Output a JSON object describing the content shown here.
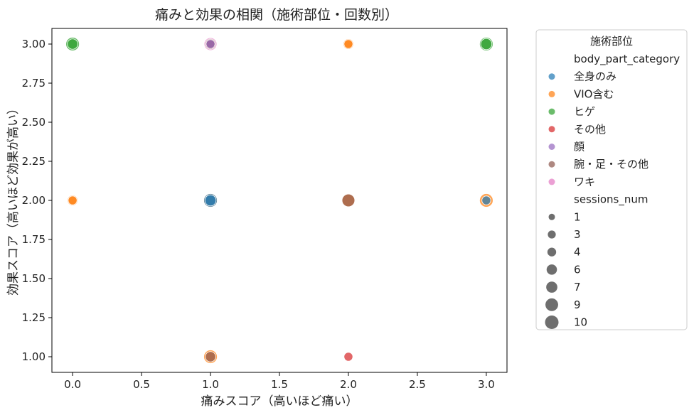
{
  "chart_data": {
    "type": "scatter",
    "title": "痛みと効果の相関（施術部位・回数別）",
    "xlabel": "痛みスコア（高いほど痛い）",
    "ylabel": "効果スコア（高いほど効果が高い）",
    "xlim": [
      -0.15,
      3.15
    ],
    "ylim": [
      0.9,
      3.1
    ],
    "xticks": [
      "0.0",
      "0.5",
      "1.0",
      "1.5",
      "2.0",
      "2.5",
      "3.0"
    ],
    "yticks": [
      "1.00",
      "1.25",
      "1.50",
      "1.75",
      "2.00",
      "2.25",
      "2.50",
      "2.75",
      "3.00"
    ],
    "grid": false,
    "legend": {
      "title": "施術部位",
      "placement": "outside-right",
      "hue_title": "body_part_category",
      "size_title": "sessions_num",
      "categories": [
        {
          "name": "全身のみ",
          "color": "#1f77b4"
        },
        {
          "name": "VIO含む",
          "color": "#ff7f0e"
        },
        {
          "name": "ヒゲ",
          "color": "#2ca02c"
        },
        {
          "name": "その他",
          "color": "#d62728"
        },
        {
          "name": "顔",
          "color": "#9467bd"
        },
        {
          "name": "腕・足・その他",
          "color": "#8c564b"
        },
        {
          "name": "ワキ",
          "color": "#e377c2"
        }
      ],
      "sizes": [
        "1",
        "3",
        "4",
        "6",
        "7",
        "9",
        "10"
      ]
    },
    "points": [
      {
        "x": 0,
        "y": 3,
        "category": "ヒゲ",
        "sessions": 10
      },
      {
        "x": 0,
        "y": 3,
        "category": "ヒゲ",
        "sessions": 6
      },
      {
        "x": 0,
        "y": 2,
        "category": "VIO含む",
        "sessions": 6
      },
      {
        "x": 0,
        "y": 2,
        "category": "VIO含む",
        "sessions": 4
      },
      {
        "x": 1,
        "y": 3,
        "category": "腕・足・その他",
        "sessions": 6
      },
      {
        "x": 1,
        "y": 3,
        "category": "ワキ",
        "sessions": 9
      },
      {
        "x": 1,
        "y": 3,
        "category": "顔",
        "sessions": 4
      },
      {
        "x": 1,
        "y": 2,
        "category": "VIO含む",
        "sessions": 10
      },
      {
        "x": 1,
        "y": 2,
        "category": "全身のみ",
        "sessions": 10
      },
      {
        "x": 1,
        "y": 2,
        "category": "全身のみ",
        "sessions": 7
      },
      {
        "x": 1,
        "y": 1,
        "category": "VIO含む",
        "sessions": 10
      },
      {
        "x": 1,
        "y": 1,
        "category": "腕・足・その他",
        "sessions": 6
      },
      {
        "x": 2,
        "y": 3,
        "category": "VIO含む",
        "sessions": 6
      },
      {
        "x": 2,
        "y": 3,
        "category": "VIO含む",
        "sessions": 4
      },
      {
        "x": 2,
        "y": 2,
        "category": "VIO含む",
        "sessions": 10
      },
      {
        "x": 2,
        "y": 2,
        "category": "腕・足・その他",
        "sessions": 9
      },
      {
        "x": 2,
        "y": 1,
        "category": "その他",
        "sessions": 4
      },
      {
        "x": 3,
        "y": 3,
        "category": "ヒゲ",
        "sessions": 10
      },
      {
        "x": 3,
        "y": 3,
        "category": "ヒゲ",
        "sessions": 7
      },
      {
        "x": 3,
        "y": 2,
        "category": "VIO含む",
        "sessions": 10
      },
      {
        "x": 3,
        "y": 2,
        "category": "全身のみ",
        "sessions": 4
      }
    ]
  }
}
